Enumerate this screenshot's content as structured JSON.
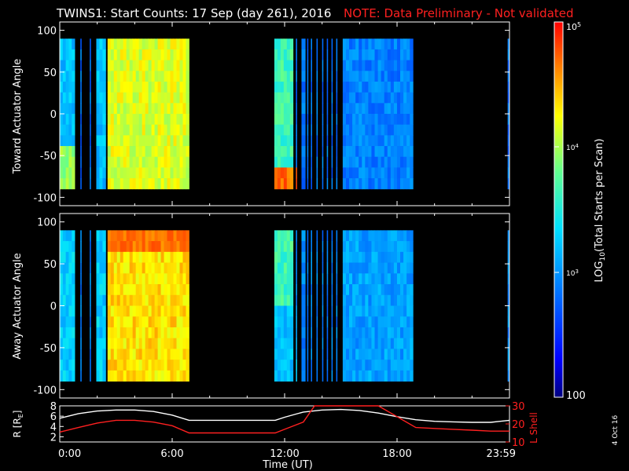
{
  "title": "TWINS1: Start Counts: 17 Sep (day 261), 2016",
  "note": "NOTE: Data Preliminary - Not validated",
  "stamp": "4 Oct 16",
  "colors": {
    "title": "#ffffff",
    "note": "#ff2020",
    "lshell": "#ff2020",
    "rcurve": "#ffffff"
  },
  "chart_data": [
    {
      "type": "heatmap",
      "panel": "toward",
      "ylabel": "Toward Actuator Angle",
      "ylim": [
        -110,
        110
      ],
      "yticks": [
        100,
        50,
        0,
        -50,
        -100
      ],
      "xlim": [
        0,
        24
      ],
      "angle_range": [
        -90,
        90
      ],
      "data_intervals_hours": [
        [
          0.0,
          0.8
        ],
        [
          1.1,
          1.15
        ],
        [
          1.6,
          1.65
        ],
        [
          1.95,
          2.45
        ],
        [
          2.55,
          6.9
        ],
        [
          11.45,
          12.45
        ],
        [
          12.6,
          12.65
        ],
        [
          12.9,
          13.1
        ],
        [
          13.2,
          13.25
        ],
        [
          13.4,
          13.45
        ],
        [
          13.7,
          13.75
        ],
        [
          14.0,
          14.05
        ],
        [
          14.25,
          14.3
        ],
        [
          14.5,
          14.55
        ],
        [
          14.75,
          14.8
        ],
        [
          15.1,
          18.85
        ],
        [
          23.9,
          24.0
        ]
      ],
      "low_band_hours": [
        [
          0.0,
          0.8
        ],
        [
          1.6,
          2.45
        ],
        [
          4.5,
          6.9
        ],
        [
          12.3,
          15.0
        ]
      ],
      "description_scale": "log"
    },
    {
      "type": "heatmap",
      "panel": "away",
      "ylabel": "Away Actuator Angle",
      "ylim": [
        -110,
        110
      ],
      "yticks": [
        100,
        50,
        0,
        -50,
        -100
      ],
      "xlim": [
        0,
        24
      ],
      "angle_range": [
        -90,
        90
      ],
      "data_intervals_hours": [
        [
          0.0,
          0.8
        ],
        [
          1.1,
          1.15
        ],
        [
          1.6,
          1.65
        ],
        [
          1.95,
          2.45
        ],
        [
          2.55,
          6.9
        ],
        [
          11.45,
          12.45
        ],
        [
          12.6,
          12.65
        ],
        [
          12.9,
          13.1
        ],
        [
          13.2,
          13.25
        ],
        [
          13.4,
          13.45
        ],
        [
          13.7,
          13.75
        ],
        [
          14.0,
          14.05
        ],
        [
          14.25,
          14.3
        ],
        [
          14.5,
          14.55
        ],
        [
          14.75,
          14.8
        ],
        [
          15.1,
          18.85
        ],
        [
          23.9,
          24.0
        ]
      ],
      "high_band_hours": [
        [
          2.55,
          6.5
        ],
        [
          11.5,
          12.6
        ]
      ]
    },
    {
      "type": "line",
      "panel": "ephemeris",
      "xlabel": "Time (UT)",
      "xlim": [
        0,
        24
      ],
      "xticks": [
        0,
        6,
        12,
        18,
        24
      ],
      "xticklabels": [
        "0:00",
        "6:00",
        "12:00",
        "18:00",
        "23:59"
      ],
      "ylabel_left": "R [RE]",
      "ylabel_left_main": "R [R",
      "ylabel_left_sub": "E",
      "ylabel_left_end": "]",
      "ylim_left": [
        1,
        8
      ],
      "yticks_left": [
        2,
        4,
        6,
        8
      ],
      "ylabel_right": "L Shell",
      "ylim_right": [
        10,
        30
      ],
      "yticks_right": [
        10,
        20,
        30
      ],
      "series": [
        {
          "name": "R",
          "axis": "left",
          "x": [
            0,
            1,
            2,
            3,
            4,
            5,
            6,
            6.9,
            7,
            11.5,
            12,
            13,
            14,
            15,
            16,
            17,
            18,
            19,
            20,
            21,
            22,
            23,
            24
          ],
          "values": [
            5.6,
            6.5,
            7.0,
            7.2,
            7.2,
            6.9,
            6.2,
            5.2,
            5.2,
            5.2,
            5.8,
            6.8,
            7.2,
            7.3,
            7.1,
            6.6,
            5.9,
            5.3,
            5.0,
            4.9,
            4.8,
            4.8,
            5.2
          ]
        },
        {
          "name": "L Shell",
          "axis": "right",
          "x": [
            0,
            1,
            2,
            3,
            4,
            5,
            6,
            6.9,
            7,
            11.5,
            12,
            13,
            13.6,
            15.2,
            17,
            18,
            19,
            20,
            21,
            22,
            23,
            24
          ],
          "values": [
            15.5,
            18,
            20.5,
            22,
            22,
            21,
            19,
            15,
            15,
            15,
            17,
            21,
            30,
            30,
            30,
            24,
            18,
            17.5,
            17,
            16.5,
            16,
            16
          ]
        }
      ]
    },
    {
      "type": "colorbar",
      "label": "LOG10(Total Starts per Scan)",
      "label_pre": "LOG",
      "label_sub": "10",
      "label_post": "(Total Starts per Scan)",
      "range": [
        100,
        100000
      ],
      "scale": "log",
      "tick_bottom": "100",
      "tick_mid1_base": "10",
      "tick_mid1_exp": "3",
      "tick_mid2_base": "10",
      "tick_mid2_exp": "4",
      "tick_top_base": "10",
      "tick_top_exp": "5"
    }
  ]
}
